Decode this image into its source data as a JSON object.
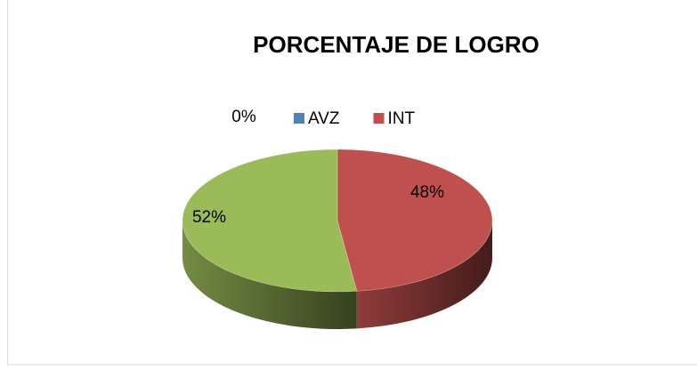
{
  "chart_data": {
    "type": "pie",
    "title": "PORCENTAJE DE LOGRO",
    "categories": [
      "AVZ",
      "INT",
      null
    ],
    "values": [
      0,
      48,
      52
    ],
    "value_labels": [
      "0%",
      "48%",
      "52%"
    ],
    "colors": [
      "#4f81bd",
      "#c0504d",
      "#9bbb59"
    ],
    "legend": "top"
  }
}
